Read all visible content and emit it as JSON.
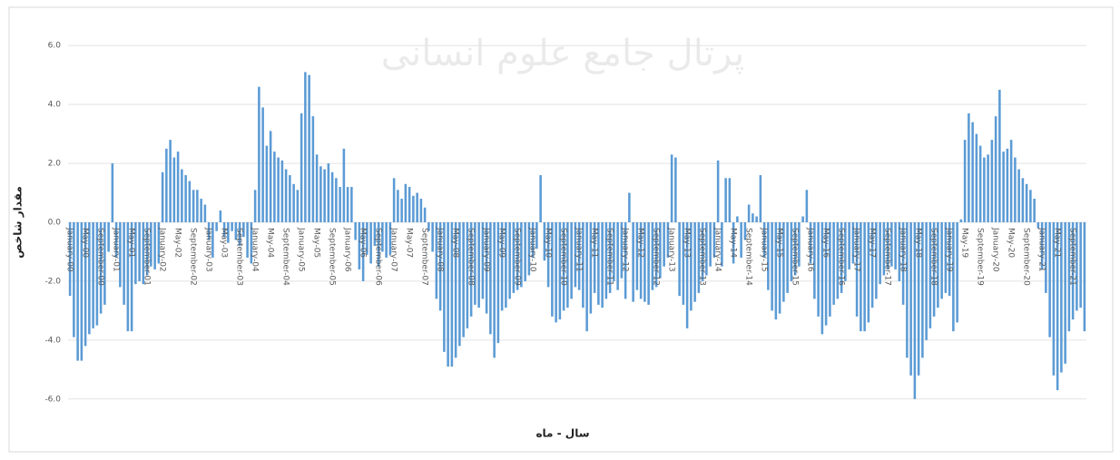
{
  "chart_data": {
    "type": "bar",
    "watermark": "پرتال جامع علوم انسانی",
    "ylabel": "مقدار شاخص",
    "xlabel": "سال - ماه",
    "color": "#5b9bd5",
    "grid": true,
    "ylim": [
      -6.5,
      6.5
    ],
    "yticks": [
      {
        "value": -6,
        "label": "-6.0"
      },
      {
        "value": -4,
        "label": "-4.0"
      },
      {
        "value": -2,
        "label": "-2.0"
      },
      {
        "value": 0,
        "label": "0.0"
      },
      {
        "value": 2,
        "label": "2.0"
      },
      {
        "value": 4,
        "label": "4.0"
      },
      {
        "value": 6,
        "label": "6.0"
      }
    ],
    "categories": [
      "January-00",
      null,
      null,
      null,
      "May-00",
      null,
      null,
      null,
      "September-00",
      null,
      null,
      null,
      "January-01",
      null,
      null,
      null,
      "May-01",
      null,
      null,
      null,
      "September-01",
      null,
      null,
      null,
      "January-02",
      null,
      null,
      null,
      "May-02",
      null,
      null,
      null,
      "September-02",
      null,
      null,
      null,
      "January-03",
      null,
      null,
      null,
      "May-03",
      null,
      null,
      null,
      "September-03",
      null,
      null,
      null,
      "January-04",
      null,
      null,
      null,
      "May-04",
      null,
      null,
      null,
      "September-04",
      null,
      null,
      null,
      "January-05",
      null,
      null,
      null,
      "May-05",
      null,
      null,
      null,
      "September-05",
      null,
      null,
      null,
      "January-06",
      null,
      null,
      null,
      "May-06",
      null,
      null,
      null,
      "September-06",
      null,
      null,
      null,
      "January-07",
      null,
      null,
      null,
      "May-07",
      null,
      null,
      null,
      "September-07",
      null,
      null,
      null,
      "January-08",
      null,
      null,
      null,
      "May-08",
      null,
      null,
      null,
      "September-08",
      null,
      null,
      null,
      "January-09",
      null,
      null,
      null,
      "May-09",
      null,
      null,
      null,
      "September-09",
      null,
      null,
      null,
      "January-10",
      null,
      null,
      null,
      "May-10",
      null,
      null,
      null,
      "September-10",
      null,
      null,
      null,
      "January-11",
      null,
      null,
      null,
      "May-11",
      null,
      null,
      null,
      "September-11",
      null,
      null,
      null,
      "January-12",
      null,
      null,
      null,
      "May-12",
      null,
      null,
      null,
      "September-12",
      null,
      null,
      null,
      "January-13",
      null,
      null,
      null,
      "May-13",
      null,
      null,
      null,
      "September-13",
      null,
      null,
      null,
      "January-14",
      null,
      null,
      null,
      "May-14",
      null,
      null,
      null,
      "September-14",
      null,
      null,
      null,
      "January-15",
      null,
      null,
      null,
      "May-15",
      null,
      null,
      null,
      "September-15",
      null,
      null,
      null,
      "January-16",
      null,
      null,
      null,
      "May-16",
      null,
      null,
      null,
      "September-16",
      null,
      null,
      null,
      "January-17",
      null,
      null,
      null,
      "May-17",
      null,
      null,
      null,
      "September-17",
      null,
      null,
      null,
      "January-18",
      null,
      null,
      null,
      "May-18",
      null,
      null,
      null,
      "September-18",
      null,
      null,
      null,
      "January-19",
      null,
      null,
      null,
      "May-19",
      null,
      null,
      null,
      "September-19",
      null,
      null,
      null,
      "January-20",
      null,
      null,
      null,
      "May-20",
      null,
      null,
      null,
      "September-20",
      null,
      null,
      null,
      "January-21",
      null,
      null,
      null,
      "May-21",
      null,
      null,
      null,
      "September-21",
      null,
      null,
      null
    ],
    "values": [
      -2.5,
      -3.9,
      -4.7,
      -4.7,
      -4.2,
      -3.8,
      -3.6,
      -3.5,
      -3.1,
      -2.8,
      -1.0,
      2.0,
      -1.2,
      -2.2,
      -2.8,
      -3.7,
      -3.7,
      -2.1,
      -2.0,
      -2.1,
      -1.8,
      -1.5,
      -1.6,
      -1.4,
      1.7,
      2.5,
      2.8,
      2.2,
      2.4,
      1.8,
      1.6,
      1.4,
      1.1,
      1.1,
      0.8,
      0.6,
      -0.6,
      -1.2,
      -0.3,
      0.4,
      -0.5,
      -0.7,
      -0.3,
      -0.6,
      -0.8,
      -0.5,
      -1.2,
      -1.4,
      1.1,
      4.6,
      3.9,
      2.6,
      3.1,
      2.4,
      2.2,
      2.1,
      1.8,
      1.6,
      1.3,
      1.1,
      3.7,
      5.1,
      5.0,
      3.6,
      2.3,
      1.9,
      1.8,
      2.0,
      1.7,
      1.5,
      1.2,
      2.5,
      1.2,
      1.2,
      -0.6,
      -1.6,
      -2.0,
      -1.1,
      -1.4,
      -0.8,
      -1.5,
      -1.0,
      -1.2,
      -1.1,
      1.5,
      1.1,
      0.8,
      1.3,
      1.2,
      0.9,
      1.0,
      0.8,
      0.5,
      -0.3,
      -1.0,
      -2.6,
      -3.0,
      -4.4,
      -4.9,
      -4.9,
      -4.6,
      -4.2,
      -3.9,
      -3.6,
      -3.2,
      -2.8,
      -2.9,
      -2.6,
      -3.1,
      -3.8,
      -4.6,
      -4.1,
      -3.0,
      -2.9,
      -2.6,
      -2.4,
      -2.3,
      -2.2,
      -2.0,
      -1.8,
      -1.2,
      -0.9,
      1.6,
      -1.3,
      -2.2,
      -3.2,
      -3.4,
      -3.3,
      -3.0,
      -2.9,
      -2.6,
      -2.2,
      -2.3,
      -2.9,
      -3.7,
      -3.1,
      -2.4,
      -2.8,
      -2.9,
      -2.6,
      -2.4,
      -2.0,
      -2.3,
      -1.9,
      -2.6,
      1.0,
      -2.7,
      -2.3,
      -2.6,
      -2.7,
      -2.8,
      -2.3,
      -2.2,
      -1.9,
      -1.5,
      -1.2,
      2.3,
      2.2,
      -2.5,
      -2.8,
      -3.6,
      -3.0,
      -2.7,
      -2.4,
      -2.0,
      -1.8,
      -1.5,
      -1.2,
      2.1,
      -1.5,
      1.5,
      1.5,
      -1.4,
      0.2,
      -1.2,
      -0.6,
      0.6,
      0.3,
      0.2,
      1.6,
      -1.2,
      -2.3,
      -3.0,
      -3.3,
      -3.1,
      -2.7,
      -2.4,
      -2.0,
      -1.8,
      -1.5,
      0.2,
      1.1,
      -1.4,
      -2.6,
      -3.2,
      -3.8,
      -3.5,
      -3.2,
      -2.8,
      -2.6,
      -2.4,
      -2.0,
      -1.6,
      -1.4,
      -3.2,
      -3.7,
      -3.7,
      -3.4,
      -2.9,
      -2.6,
      -2.1,
      -1.8,
      -1.6,
      -1.5,
      -1.6,
      -2.0,
      -2.8,
      -4.6,
      -5.2,
      -6.0,
      -5.2,
      -4.6,
      -4.0,
      -3.6,
      -3.2,
      -2.9,
      -2.6,
      -2.4,
      -2.5,
      -3.7,
      -3.4,
      0.1,
      2.8,
      3.7,
      3.4,
      3.0,
      2.6,
      2.2,
      2.3,
      2.8,
      3.6,
      4.5,
      2.4,
      2.5,
      2.8,
      2.2,
      1.8,
      1.5,
      1.3,
      1.1,
      0.8,
      -0.2,
      -1.6,
      -2.4,
      -3.9,
      -5.2,
      -5.7,
      -5.1,
      -4.8,
      -3.7,
      -3.3,
      -3.0,
      -2.9,
      -3.7
    ]
  }
}
